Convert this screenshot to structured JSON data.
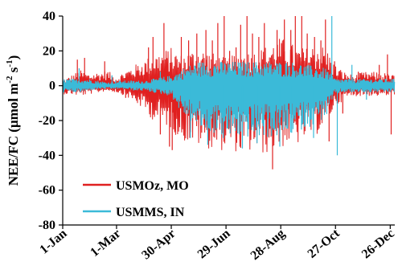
{
  "chart_data": {
    "type": "line",
    "ylabel_main": "NEE/FC  (μmol m",
    "ylabel_sup1": "-2",
    "ylabel_mid": " s",
    "ylabel_sup2": "-1",
    "ylabel_end": ")",
    "xlabel": "",
    "ylim": [
      -80,
      40
    ],
    "yticks": [
      -80,
      -60,
      -40,
      -20,
      0,
      20,
      40
    ],
    "ytick_labels": [
      "-80",
      "-60",
      "-40",
      "-20",
      "0",
      "20",
      "40"
    ],
    "xlim": [
      1,
      365
    ],
    "xticks": [
      1,
      60,
      120,
      180,
      240,
      300,
      360
    ],
    "xtick_labels": [
      "1-Jan",
      "1-Mar",
      "30-Apr",
      "29-Jun",
      "28-Aug",
      "27-Oct",
      "26-Dec"
    ],
    "legend_position": "bottom-left",
    "grid": false,
    "series": [
      {
        "name": "USMOz, MO",
        "color": "#e02020",
        "x": [
          1,
          10,
          20,
          30,
          40,
          50,
          60,
          70,
          80,
          90,
          100,
          110,
          120,
          130,
          140,
          150,
          160,
          170,
          180,
          190,
          200,
          210,
          220,
          230,
          240,
          250,
          260,
          270,
          280,
          290,
          300,
          310,
          320,
          330,
          340,
          350,
          365
        ],
        "upper": [
          3,
          6,
          9,
          7,
          8,
          9,
          5,
          9,
          12,
          15,
          18,
          20,
          22,
          18,
          20,
          22,
          20,
          18,
          16,
          18,
          20,
          20,
          22,
          25,
          28,
          25,
          22,
          22,
          25,
          22,
          12,
          8,
          6,
          8,
          8,
          8,
          6
        ],
        "lower": [
          -5,
          -5,
          -6,
          -5,
          -4,
          -3,
          -4,
          -6,
          -10,
          -14,
          -20,
          -22,
          -25,
          -32,
          -33,
          -35,
          -36,
          -38,
          -37,
          -38,
          -40,
          -38,
          -40,
          -38,
          -36,
          -34,
          -34,
          -30,
          -28,
          -22,
          -12,
          -8,
          -6,
          -6,
          -6,
          -6,
          -6
        ],
        "spikes": [
          [
            17,
            15
          ],
          [
            25,
            16
          ],
          [
            47,
            14
          ],
          [
            70,
            -7
          ],
          [
            95,
            22
          ],
          [
            100,
            28
          ],
          [
            108,
            -28
          ],
          [
            112,
            36
          ],
          [
            118,
            -35
          ],
          [
            121,
            -37
          ],
          [
            124,
            -26
          ],
          [
            131,
            28
          ],
          [
            139,
            26
          ],
          [
            148,
            30
          ],
          [
            158,
            32
          ],
          [
            165,
            26
          ],
          [
            171,
            36
          ],
          [
            178,
            40
          ],
          [
            184,
            20
          ],
          [
            191,
            22
          ],
          [
            196,
            35
          ],
          [
            203,
            40
          ],
          [
            209,
            30
          ],
          [
            216,
            28
          ],
          [
            222,
            36
          ],
          [
            231,
            -48
          ],
          [
            236,
            32
          ],
          [
            241,
            24
          ],
          [
            244,
            38
          ],
          [
            251,
            32
          ],
          [
            256,
            40
          ],
          [
            263,
            40
          ],
          [
            269,
            30
          ],
          [
            277,
            28
          ],
          [
            284,
            26
          ],
          [
            289,
            38
          ],
          [
            293,
            -32
          ],
          [
            299,
            14
          ],
          [
            308,
            -16
          ],
          [
            325,
            8
          ],
          [
            348,
            12
          ],
          [
            357,
            18
          ],
          [
            361,
            -28
          ]
        ]
      },
      {
        "name": "USMMS, IN",
        "color": "#3bbad8",
        "x": [
          1,
          10,
          20,
          30,
          40,
          50,
          60,
          70,
          80,
          90,
          100,
          110,
          120,
          130,
          140,
          150,
          160,
          170,
          180,
          190,
          200,
          210,
          220,
          230,
          240,
          250,
          260,
          270,
          280,
          290,
          300,
          310,
          320,
          330,
          340,
          350,
          365
        ],
        "upper": [
          4,
          4,
          4,
          4,
          3,
          2,
          3,
          3,
          3,
          3,
          4,
          5,
          6,
          9,
          12,
          14,
          14,
          14,
          14,
          14,
          14,
          14,
          14,
          14,
          14,
          14,
          13,
          12,
          11,
          10,
          4,
          4,
          4,
          4,
          4,
          4,
          4
        ],
        "lower": [
          -4,
          -4,
          -4,
          -3,
          -2,
          -2,
          -2,
          -2,
          -3,
          -3,
          -4,
          -5,
          -6,
          -15,
          -20,
          -25,
          -27,
          -28,
          -30,
          -30,
          -30,
          -30,
          -30,
          -30,
          -30,
          -28,
          -26,
          -24,
          -22,
          -18,
          -5,
          -4,
          -4,
          -4,
          -4,
          -4,
          -4
        ],
        "spikes": [
          [
            19,
            10
          ],
          [
            55,
            6
          ],
          [
            108,
            8
          ],
          [
            141,
            -30
          ],
          [
            160,
            -34
          ],
          [
            177,
            -30
          ],
          [
            198,
            -36
          ],
          [
            214,
            -33
          ],
          [
            239,
            -35
          ],
          [
            252,
            -27
          ],
          [
            276,
            -30
          ],
          [
            296,
            40
          ],
          [
            302,
            -40
          ],
          [
            318,
            12
          ],
          [
            334,
            -8
          ]
        ]
      }
    ]
  }
}
